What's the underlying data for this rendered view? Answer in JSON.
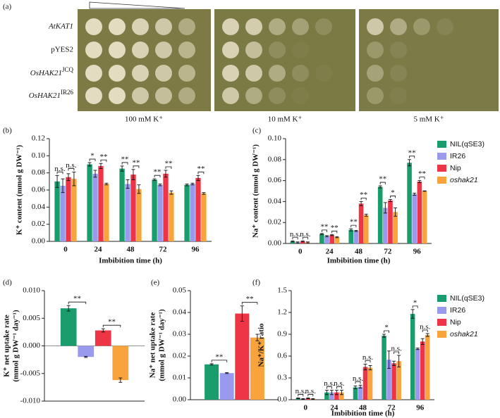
{
  "panel_a": {
    "label": "(a)",
    "rows": [
      {
        "gene": "AtKAT1",
        "italic": true
      },
      {
        "gene": "pYES2",
        "italic": false
      },
      {
        "gene": "OsHAK21",
        "allele": "JCQ",
        "italic": true
      },
      {
        "gene": "OsHAK21",
        "allele": "IR26",
        "italic": true
      }
    ],
    "columns": [
      "100 mM K⁺",
      "10 mM K⁺",
      "5 mM K⁺"
    ]
  },
  "chart_data": [
    {
      "type": "bar",
      "panel": "(b)",
      "ylabel": [
        "K⁺ content (mmol g DW⁻¹)"
      ],
      "xlabel": "Imbibition time (h)",
      "categories": [
        "0",
        "24",
        "48",
        "72",
        "96"
      ],
      "ylim": [
        0,
        0.12
      ],
      "yticks": [
        {
          "value": 0,
          "label": "0.00"
        },
        0.02,
        0.04,
        0.06,
        0.08,
        {
          "value": 0.1,
          "label": "0.10"
        },
        0.12
      ],
      "series": [
        {
          "name": "NIL(qSE3)",
          "color": "#1a9d6c",
          "values": [
            0.07,
            0.09,
            0.085,
            0.072,
            0.066
          ],
          "errors": [
            0.007,
            0.002,
            0.003,
            0.001,
            0.001
          ]
        },
        {
          "name": "IR26",
          "color": "#9999ee",
          "values": [
            0.065,
            0.079,
            0.067,
            0.066,
            0.067
          ],
          "errors": [
            0.008,
            0.004,
            0.005,
            0.001,
            0.001
          ]
        },
        {
          "name": "Nip",
          "color": "#ee3545",
          "values": [
            0.075,
            0.088,
            0.078,
            0.079,
            0.074
          ],
          "errors": [
            0.004,
            0.003,
            0.006,
            0.004,
            0.003
          ]
        },
        {
          "name": "oshak21",
          "color": "#f8a33c",
          "italic": true,
          "values": [
            0.073,
            0.067,
            0.061,
            0.057,
            0.056
          ],
          "errors": [
            0.008,
            0.001,
            0.005,
            0.002,
            0.001
          ]
        }
      ],
      "annotations": [
        {
          "text": "n.s.",
          "at": "0",
          "between": [
            "NIL(qSE3)",
            "IR26"
          ]
        },
        {
          "text": "n.s.",
          "at": "0",
          "between": [
            "Nip",
            "oshak21"
          ]
        },
        {
          "text": "*",
          "at": "24",
          "between": [
            "NIL(qSE3)",
            "IR26"
          ]
        },
        {
          "text": "**",
          "at": "24",
          "between": [
            "Nip",
            "oshak21"
          ]
        },
        {
          "text": "**",
          "at": "48",
          "between": [
            "NIL(qSE3)",
            "IR26"
          ]
        },
        {
          "text": "**",
          "at": "48",
          "between": [
            "Nip",
            "oshak21"
          ]
        },
        {
          "text": "**",
          "at": "72",
          "between": [
            "NIL(qSE3)",
            "IR26"
          ]
        },
        {
          "text": "**",
          "at": "72",
          "between": [
            "Nip",
            "oshak21"
          ]
        },
        {
          "text": "**",
          "at": "96",
          "between": [
            "Nip",
            "oshak21"
          ]
        }
      ],
      "legend": false
    },
    {
      "type": "bar",
      "panel": "(c)",
      "ylabel": [
        "Na⁺ content (mmol g DW⁻¹)"
      ],
      "xlabel": "Imbibition time (h)",
      "categories": [
        "0",
        "24",
        "48",
        "72",
        "96"
      ],
      "ylim": [
        0,
        0.1
      ],
      "yticks": [
        {
          "value": 0,
          "label": "0.00"
        },
        0.02,
        0.04,
        0.06,
        0.08,
        {
          "value": 0.1,
          "label": "0.10"
        }
      ],
      "series": [
        {
          "name": "NIL(qSE3)",
          "color": "#1a9d6c",
          "values": [
            0.002,
            0.009,
            0.013,
            0.054,
            0.077
          ],
          "errors": [
            0.0005,
            0.0005,
            0.001,
            0.001,
            0.003
          ]
        },
        {
          "name": "IR26",
          "color": "#9999ee",
          "values": [
            0.001,
            0.007,
            0.012,
            0.034,
            0.047
          ],
          "errors": [
            0.0005,
            0.0005,
            0.0005,
            0.005,
            0.001
          ]
        },
        {
          "name": "Nip",
          "color": "#ee3545",
          "values": [
            0.002,
            0.008,
            0.038,
            0.041,
            0.059
          ],
          "errors": [
            0.0005,
            0.0005,
            0.002,
            0.001,
            0.001
          ]
        },
        {
          "name": "oshak21",
          "color": "#f8a33c",
          "italic": true,
          "values": [
            0.001,
            0.006,
            0.027,
            0.03,
            0.05
          ],
          "errors": [
            0.0005,
            0.0005,
            0.001,
            0.004,
            0.0002
          ]
        }
      ],
      "annotations": [
        {
          "text": "n.s.",
          "at": "0",
          "between": [
            "NIL(qSE3)",
            "IR26"
          ]
        },
        {
          "text": "n.s.",
          "at": "0",
          "between": [
            "Nip",
            "oshak21"
          ]
        },
        {
          "text": "**",
          "at": "24",
          "between": [
            "NIL(qSE3)",
            "IR26"
          ]
        },
        {
          "text": "**",
          "at": "24",
          "between": [
            "Nip",
            "oshak21"
          ]
        },
        {
          "text": "**",
          "at": "48",
          "between": [
            "NIL(qSE3)",
            "IR26"
          ]
        },
        {
          "text": "**",
          "at": "48",
          "between": [
            "Nip",
            "oshak21"
          ]
        },
        {
          "text": "**",
          "at": "72",
          "between": [
            "NIL(qSE3)",
            "IR26"
          ]
        },
        {
          "text": "*",
          "at": "72",
          "between": [
            "Nip",
            "oshak21"
          ]
        },
        {
          "text": "**",
          "at": "96",
          "between": [
            "NIL(qSE3)",
            "IR26"
          ]
        },
        {
          "text": "**",
          "at": "96",
          "between": [
            "Nip",
            "oshak21"
          ]
        }
      ],
      "legend": true
    },
    {
      "type": "bar",
      "panel": "(d)",
      "ylabel": [
        "K⁺ net uptake rate",
        "(mmol g DW⁻¹ day⁻¹)"
      ],
      "categories": [
        null
      ],
      "ylim": [
        -0.01,
        0.01
      ],
      "yticks": [
        {
          "value": -0.01,
          "label": "-0.010"
        },
        {
          "value": -0.005,
          "label": "-0.005"
        },
        {
          "value": 0,
          "label": "0.000"
        },
        0.005,
        {
          "value": 0.01,
          "label": "0.010"
        }
      ],
      "series": [
        {
          "name": "NIL(qSE3)",
          "color": "#1a9d6c",
          "values": [
            0.0068
          ],
          "errors": [
            0.0005
          ]
        },
        {
          "name": "IR26",
          "color": "#9999ee",
          "values": [
            -0.002
          ],
          "errors": [
            0.0001
          ]
        },
        {
          "name": "Nip",
          "color": "#ee3545",
          "values": [
            0.0028
          ],
          "errors": [
            0.0003
          ]
        },
        {
          "name": "oshak21",
          "color": "#f8a33c",
          "italic": true,
          "values": [
            -0.0062
          ],
          "errors": [
            0.0004
          ]
        }
      ],
      "annotations": [
        {
          "text": "**",
          "at": null,
          "between": [
            "NIL(qSE3)",
            "IR26"
          ]
        },
        {
          "text": "**",
          "at": null,
          "between": [
            "Nip",
            "oshak21"
          ]
        }
      ],
      "legend": false
    },
    {
      "type": "bar",
      "panel": "(e)",
      "ylabel": [
        "Na⁺ net uptake rate",
        "(mmol g DW⁻¹ day⁻¹)"
      ],
      "categories": [
        null
      ],
      "ylim": [
        0,
        0.05
      ],
      "yticks": [
        {
          "value": 0,
          "label": "0.00"
        },
        0.01,
        0.02,
        0.03,
        0.04,
        {
          "value": 0.05,
          "label": "0.05"
        }
      ],
      "series": [
        {
          "name": "NIL(qSE3)",
          "color": "#1a9d6c",
          "values": [
            0.0162
          ],
          "errors": [
            0.0003
          ]
        },
        {
          "name": "IR26",
          "color": "#9999ee",
          "values": [
            0.0122
          ],
          "errors": [
            0.0002
          ]
        },
        {
          "name": "Nip",
          "color": "#ee3545",
          "values": [
            0.0395
          ],
          "errors": [
            0.0035
          ]
        },
        {
          "name": "oshak21",
          "color": "#f8a33c",
          "italic": true,
          "values": [
            0.0285
          ],
          "errors": [
            0.0015
          ]
        }
      ],
      "annotations": [
        {
          "text": "**",
          "at": null,
          "between": [
            "NIL(qSE3)",
            "IR26"
          ]
        },
        {
          "text": "**",
          "at": null,
          "between": [
            "Nip",
            "oshak21"
          ]
        }
      ],
      "legend": false
    },
    {
      "type": "bar",
      "panel": "(f)",
      "ylabel": [
        "Na⁺/K⁺ ratio"
      ],
      "xlabel": "Imbibition time (h)",
      "categories": [
        "0",
        "24",
        "48",
        "72",
        "96"
      ],
      "ylim": [
        0,
        1.5
      ],
      "yticks": [
        {
          "value": 0,
          "label": "0.0"
        },
        0.3,
        0.6,
        0.9,
        1.2,
        1.5
      ],
      "series": [
        {
          "name": "NIL(qSE3)",
          "color": "#1a9d6c",
          "values": [
            0.02,
            0.1,
            0.17,
            0.88,
            1.18
          ],
          "errors": [
            0.005,
            0.03,
            0.02,
            0.02,
            0.06
          ]
        },
        {
          "name": "IR26",
          "color": "#9999ee",
          "values": [
            0.01,
            0.1,
            0.18,
            0.55,
            0.7
          ],
          "errors": [
            0.005,
            0.03,
            0.02,
            0.12,
            0.01
          ]
        },
        {
          "name": "Nip",
          "color": "#ee3545",
          "values": [
            0.02,
            0.1,
            0.45,
            0.5,
            0.8
          ],
          "errors": [
            0.005,
            0.03,
            0.04,
            0.03,
            0.04
          ]
        },
        {
          "name": "oshak21",
          "color": "#f8a33c",
          "italic": true,
          "values": [
            0.01,
            0.1,
            0.44,
            0.53,
            0.89
          ],
          "errors": [
            0.005,
            0.03,
            0.03,
            0.08,
            0.02
          ]
        }
      ],
      "annotations": [
        {
          "text": "n.s.",
          "at": "0",
          "between": [
            "NIL(qSE3)",
            "IR26"
          ]
        },
        {
          "text": "n.s.",
          "at": "0",
          "between": [
            "Nip",
            "oshak21"
          ]
        },
        {
          "text": "n.s.",
          "at": "24",
          "between": [
            "NIL(qSE3)",
            "IR26"
          ]
        },
        {
          "text": "n.s.",
          "at": "24",
          "between": [
            "Nip",
            "oshak21"
          ]
        },
        {
          "text": "n.s.",
          "at": "48",
          "between": [
            "NIL(qSE3)",
            "IR26"
          ]
        },
        {
          "text": "n.s.",
          "at": "48",
          "between": [
            "Nip",
            "oshak21"
          ]
        },
        {
          "text": "*",
          "at": "72",
          "between": [
            "NIL(qSE3)",
            "IR26"
          ]
        },
        {
          "text": "n.s.",
          "at": "72",
          "between": [
            "Nip",
            "oshak21"
          ]
        },
        {
          "text": "*",
          "at": "96",
          "between": [
            "NIL(qSE3)",
            "IR26"
          ]
        },
        {
          "text": "n.s.",
          "at": "96",
          "between": [
            "Nip",
            "oshak21"
          ]
        }
      ],
      "legend": true
    }
  ]
}
